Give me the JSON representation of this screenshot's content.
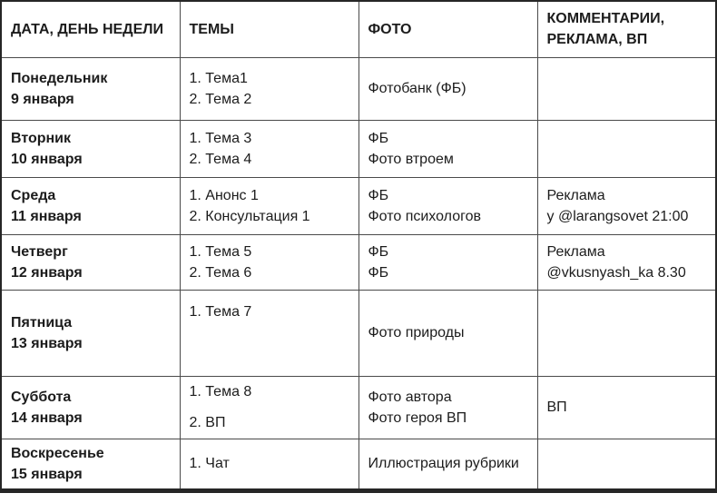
{
  "colors": {
    "background": "#ffffff",
    "text": "#1c1c1c",
    "grid_line": "#4a4a4a",
    "outer_border": "#262626"
  },
  "table": {
    "headers": [
      "ДАТА, ДЕНЬ НЕДЕЛИ",
      "ТЕМЫ",
      "ФОТО",
      "КОММЕНТАРИИ, РЕКЛАМА, ВП"
    ],
    "rows": [
      {
        "day": "Понедельник",
        "date": "9 января",
        "topics": [
          "1. Тема1",
          "2. Тема 2"
        ],
        "photo": [
          "Фотобанк (ФБ)"
        ],
        "comments": []
      },
      {
        "day": "Вторник",
        "date": "10 января",
        "topics": [
          "1. Тема 3",
          "2. Тема 4"
        ],
        "photo": [
          "ФБ",
          "Фото втроем"
        ],
        "comments": []
      },
      {
        "day": "Среда",
        "date": "11 января",
        "topics": [
          "1. Анонс 1",
          "2. Консультация 1"
        ],
        "photo": [
          "ФБ",
          "Фото психологов"
        ],
        "comments": [
          "Реклама",
          "у @larangsovet 21:00"
        ]
      },
      {
        "day": "Четверг",
        "date": "12 января",
        "topics": [
          "1. Тема 5",
          "2. Тема 6"
        ],
        "photo": [
          "ФБ",
          "ФБ"
        ],
        "comments": [
          "Реклама",
          "@vkusnyash_ka 8.30"
        ]
      },
      {
        "day": "Пятница",
        "date": "13 января",
        "topics": [
          "1. Тема 7"
        ],
        "photo": [
          "Фото природы"
        ],
        "comments": []
      },
      {
        "day": "Суббота",
        "date": "14 января",
        "topics": [
          "1. Тема 8",
          "2. ВП"
        ],
        "photo": [
          "Фото автора",
          "Фото героя ВП"
        ],
        "comments": [
          "ВП"
        ]
      },
      {
        "day": "Воскресенье",
        "date": "15 января",
        "topics": [
          "1. Чат"
        ],
        "photo": [
          "Иллюстрация рубрики"
        ],
        "comments": []
      }
    ]
  }
}
